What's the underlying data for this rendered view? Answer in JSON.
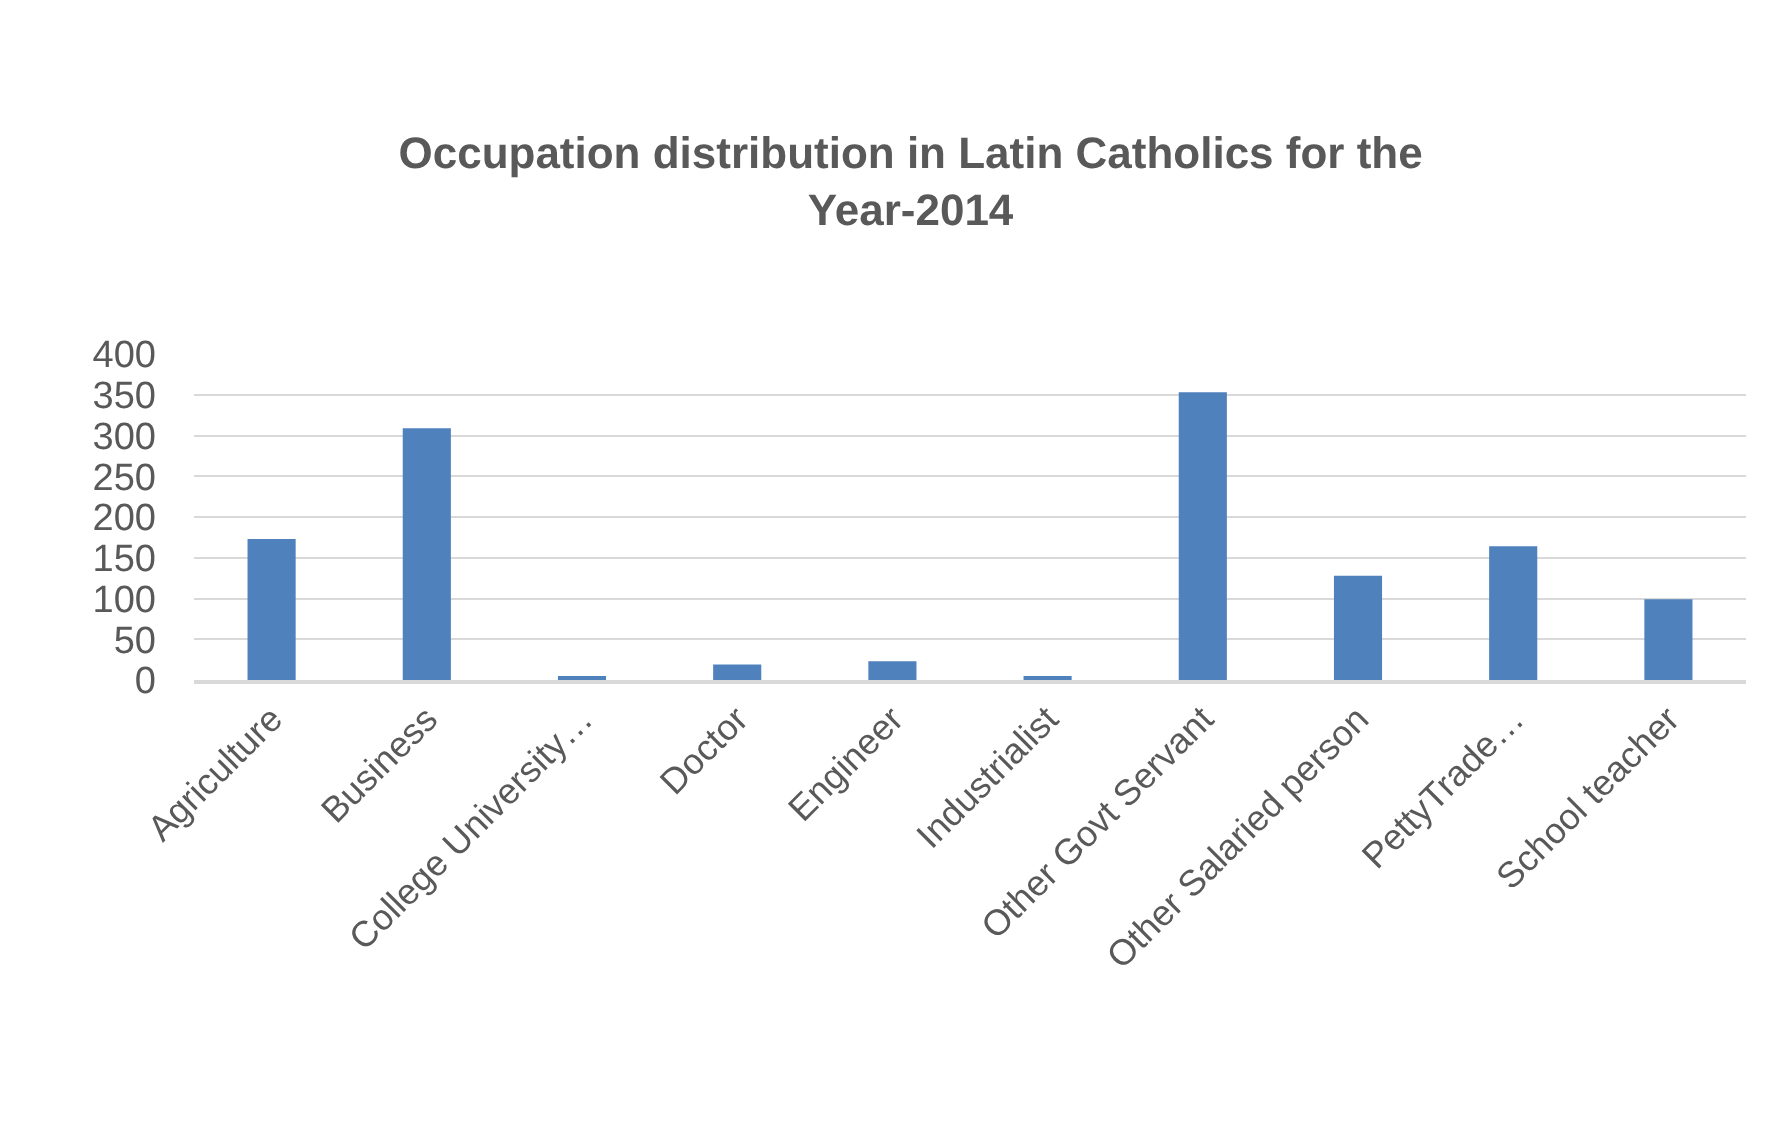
{
  "chart_data": {
    "type": "bar",
    "title": "Occupation distribution in Latin Catholics for the Year-2014",
    "categories": [
      "Agriculture",
      "Business",
      "College University…",
      "Doctor",
      "Engineer",
      "Industrialist",
      "Other Govt Servant",
      "Other Salaried person",
      "PettyTrade…",
      "School teacher"
    ],
    "values": [
      173,
      309,
      3,
      19,
      23,
      3,
      353,
      128,
      164,
      99
    ],
    "color": "#4f81bd",
    "ylim": [
      0,
      400
    ],
    "yticks": [
      0,
      50,
      100,
      150,
      200,
      250,
      300,
      350,
      400
    ],
    "grid": "y"
  }
}
